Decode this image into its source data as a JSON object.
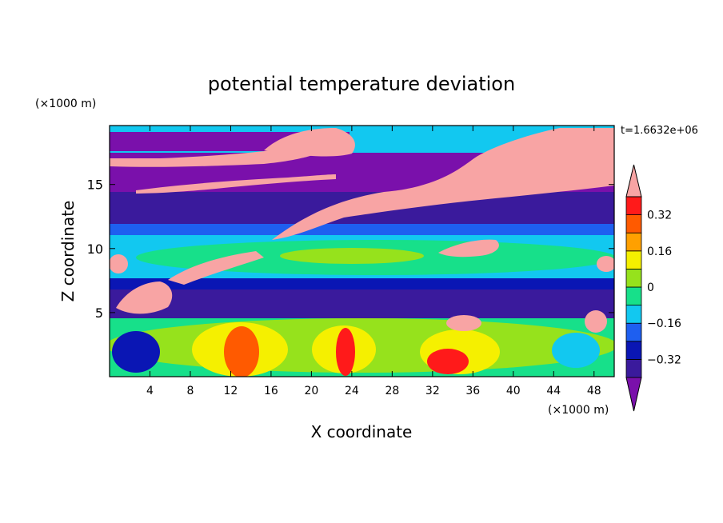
{
  "chart_data": {
    "type": "heatmap",
    "title": "potential temperature deviation",
    "xlabel": "X coordinate",
    "ylabel": "Z coordinate",
    "x_unit": "(×1000 m)",
    "y_unit": "(×1000 m)",
    "time_label": "t=1.6632e+06",
    "xlim": [
      0,
      50
    ],
    "ylim": [
      0,
      19.6
    ],
    "x_ticks": [
      4,
      8,
      12,
      16,
      20,
      24,
      28,
      32,
      36,
      40,
      44,
      48
    ],
    "y_ticks": [
      5,
      10,
      15
    ],
    "colorbar": {
      "levels": [
        -0.4,
        -0.32,
        -0.24,
        -0.16,
        -0.08,
        0,
        0.08,
        0.16,
        0.24,
        0.32,
        0.4
      ],
      "labeled_levels": [
        0.32,
        0.16,
        0,
        -0.16,
        -0.32
      ],
      "labels": [
        "0.32",
        "0.16",
        "0",
        "−0.16",
        "−0.32"
      ],
      "colors": [
        "#7a10ab",
        "#3a1a9c",
        "#0a16b4",
        "#1e5ff0",
        "#12c8f0",
        "#17e08a",
        "#96e21c",
        "#f5f000",
        "#ffa000",
        "#ff5a00",
        "#ff1a1a",
        "#f8a4a4"
      ]
    }
  }
}
